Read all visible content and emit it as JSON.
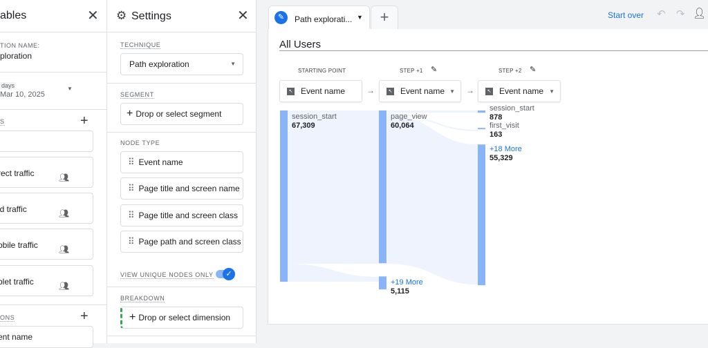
{
  "variables": {
    "title": "ables",
    "exploration_label": "TION NAME:",
    "exploration_name": "ploration",
    "date_chip": "days",
    "date_range": "Mar 10, 2025",
    "segments_label": "S",
    "segments": [
      "",
      "rect traffic",
      "id traffic",
      "obile traffic",
      "blet traffic"
    ],
    "dimensions_label": "ONS",
    "dimensions": [
      "ent name"
    ]
  },
  "settings": {
    "title": "Settings",
    "technique_label": "TECHNIQUE",
    "technique_value": "Path exploration",
    "segment_label": "SEGMENT",
    "segment_placeholder": "Drop or select segment",
    "node_type_label": "NODE TYPE",
    "node_types": [
      "Event name",
      "Page title and screen name",
      "Page title and screen class",
      "Page path and screen class"
    ],
    "unique_nodes_label": "VIEW UNIQUE NODES ONLY",
    "unique_nodes_checked": true,
    "breakdown_label": "BREAKDOWN",
    "breakdown_placeholder": "Drop or select dimension"
  },
  "tabs": {
    "active": "Path explorati...",
    "add": "+"
  },
  "toolbar": {
    "start_over": "Start over"
  },
  "canvas": {
    "segment_title": "All Users",
    "steps": [
      {
        "label": "STARTING POINT",
        "dimension": "Event name"
      },
      {
        "label": "STEP +1",
        "dimension": "Event name"
      },
      {
        "label": "STEP +2",
        "dimension": "Event name"
      }
    ],
    "nodes": [
      [
        {
          "label": "session_start",
          "value": "67,309",
          "n": 67309
        }
      ],
      [
        {
          "label": "page_view",
          "value": "60,064",
          "n": 60064
        },
        {
          "label": "+19 More",
          "value": "5,115",
          "n": 5115,
          "more": true
        }
      ],
      [
        {
          "label": "session_start",
          "value": "878",
          "n": 878
        },
        {
          "label": "first_visit",
          "value": "163",
          "n": 163
        },
        {
          "label": "+18 More",
          "value": "55,329",
          "n": 55329,
          "more": true
        }
      ]
    ]
  },
  "colors": {
    "accent": "#1a73e8",
    "node": "#8ab4f8",
    "flow": "#e8f0fe"
  }
}
